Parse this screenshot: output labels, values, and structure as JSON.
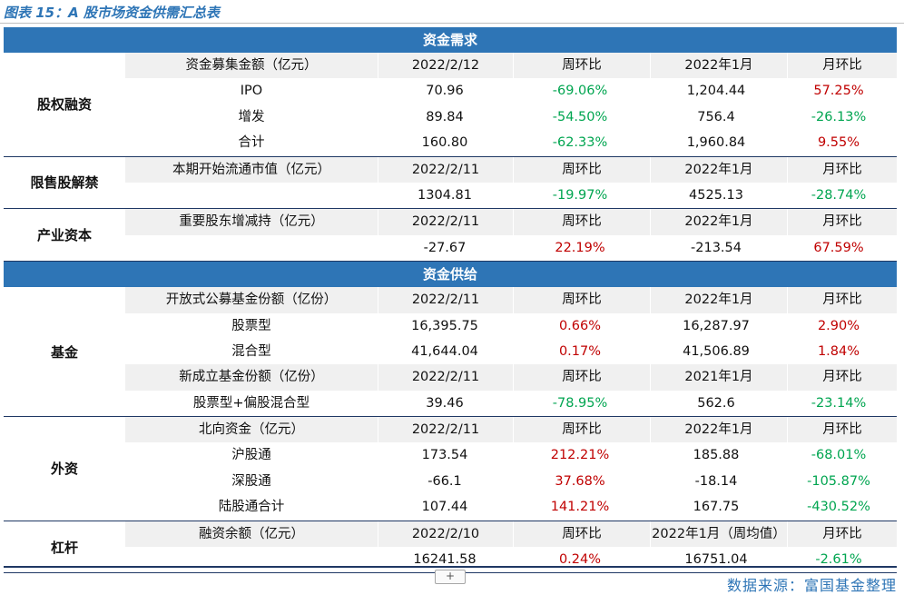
{
  "title": "图表 15：A 股市场资金供需汇总表",
  "source": "数据来源：富国基金整理",
  "expand_button": "+",
  "colors": {
    "banner": "#2e75b6",
    "positive": "#c00000",
    "negative": "#00a550"
  },
  "sections": [
    {
      "banner": "资金需求",
      "groups": [
        {
          "label": "股权融资",
          "rows": [
            {
              "hdr": true,
              "cells": [
                "资金募集金额（亿元）",
                "2022/2/12",
                "周环比",
                "2022年1月",
                "月环比"
              ]
            },
            {
              "cells": [
                "IPO",
                "70.96",
                "-69.06%",
                "1,204.44",
                "57.25%"
              ],
              "signs": [
                "",
                "",
                "neg",
                "",
                "pos"
              ]
            },
            {
              "cells": [
                "增发",
                "89.84",
                "-54.50%",
                "756.4",
                "-26.13%"
              ],
              "signs": [
                "",
                "",
                "neg",
                "",
                "neg"
              ]
            },
            {
              "cells": [
                "合计",
                "160.80",
                "-62.33%",
                "1,960.84",
                "9.55%"
              ],
              "signs": [
                "",
                "",
                "neg",
                "",
                "pos"
              ]
            }
          ]
        },
        {
          "label": "限售股解禁",
          "rows": [
            {
              "hdr": true,
              "cells": [
                "本期开始流通市值（亿元）",
                "2022/2/11",
                "周环比",
                "2022年1月",
                "月环比"
              ]
            },
            {
              "cells": [
                "",
                "1304.81",
                "-19.97%",
                "4525.13",
                "-28.74%"
              ],
              "signs": [
                "",
                "",
                "neg",
                "",
                "neg"
              ]
            }
          ]
        },
        {
          "label": "产业资本",
          "rows": [
            {
              "hdr": true,
              "cells": [
                "重要股东增减持（亿元）",
                "2022/2/11",
                "周环比",
                "2022年1月",
                "月环比"
              ]
            },
            {
              "cells": [
                "",
                "-27.67",
                "22.19%",
                "-213.54",
                "67.59%"
              ],
              "signs": [
                "",
                "",
                "pos",
                "",
                "pos"
              ]
            }
          ]
        }
      ]
    },
    {
      "banner": "资金供给",
      "groups": [
        {
          "label": "基金",
          "rows": [
            {
              "hdr": true,
              "cells": [
                "开放式公募基金份额（亿份）",
                "2022/2/11",
                "周环比",
                "2022年1月",
                "月环比"
              ]
            },
            {
              "cells": [
                "股票型",
                "16,395.75",
                "0.66%",
                "16,287.97",
                "2.90%"
              ],
              "signs": [
                "",
                "",
                "pos",
                "",
                "pos"
              ]
            },
            {
              "cells": [
                "混合型",
                "41,644.04",
                "0.17%",
                "41,506.89",
                "1.84%"
              ],
              "signs": [
                "",
                "",
                "pos",
                "",
                "pos"
              ]
            },
            {
              "hdr": true,
              "cells": [
                "新成立基金份额（亿份）",
                "2022/2/11",
                "周环比",
                "2021年1月",
                "月环比"
              ]
            },
            {
              "cells": [
                "股票型+偏股混合型",
                "39.46",
                "-78.95%",
                "562.6",
                "-23.14%"
              ],
              "signs": [
                "",
                "",
                "neg",
                "",
                "neg"
              ]
            }
          ]
        },
        {
          "label": "外资",
          "rows": [
            {
              "hdr": true,
              "cells": [
                "北向资金（亿元）",
                "2022/2/11",
                "周环比",
                "2022年1月",
                "月环比"
              ]
            },
            {
              "cells": [
                "沪股通",
                "173.54",
                "212.21%",
                "185.88",
                "-68.01%"
              ],
              "signs": [
                "",
                "",
                "pos",
                "",
                "neg"
              ]
            },
            {
              "cells": [
                "深股通",
                "-66.1",
                "37.68%",
                "-18.14",
                "-105.87%"
              ],
              "signs": [
                "",
                "",
                "pos",
                "",
                "neg"
              ]
            },
            {
              "cells": [
                "陆股通合计",
                "107.44",
                "141.21%",
                "167.75",
                "-430.52%"
              ],
              "signs": [
                "",
                "",
                "pos",
                "",
                "neg"
              ]
            }
          ]
        },
        {
          "label": "杠杆",
          "rows": [
            {
              "hdr": true,
              "cells": [
                "融资余额（亿元）",
                "2022/2/10",
                "周环比",
                "2022年1月（周均值）",
                "月环比"
              ]
            },
            {
              "cells": [
                "",
                "16241.58",
                "0.24%",
                "16751.04",
                "-2.61%"
              ],
              "signs": [
                "",
                "",
                "pos",
                "",
                "neg"
              ]
            }
          ]
        }
      ]
    }
  ]
}
